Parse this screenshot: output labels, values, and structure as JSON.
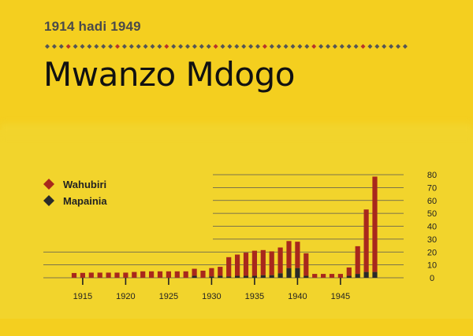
{
  "subtitle": "1914 hadi 1949",
  "title": "Mwanzo Mdogo",
  "colors": {
    "background": "#f2d42c",
    "header": "#f4cf1f",
    "wahubiri": "#a8281c",
    "mapainia": "#2a2a2a",
    "dot_red": "#b8342a",
    "dot_dark": "#555555"
  },
  "legend": [
    {
      "label": "Wahubiri",
      "icon": "diamond-icon-red"
    },
    {
      "label": "Mapainia",
      "icon": "diamond-icon-dark"
    }
  ],
  "chart_data": {
    "type": "bar",
    "stacked": true,
    "x": [
      1914,
      1915,
      1916,
      1917,
      1918,
      1919,
      1920,
      1921,
      1922,
      1923,
      1924,
      1925,
      1926,
      1927,
      1928,
      1929,
      1930,
      1931,
      1932,
      1933,
      1934,
      1935,
      1936,
      1937,
      1938,
      1939,
      1940,
      1941,
      1942,
      1943,
      1944,
      1945,
      1946,
      1947,
      1948,
      1949
    ],
    "series": [
      {
        "name": "Wahubiri",
        "color": "#a8281c",
        "values": [
          3.7,
          3.8,
          4.0,
          4.0,
          4.0,
          4.0,
          4.0,
          4.5,
          5.0,
          5.0,
          5.0,
          5.0,
          5.0,
          5.0,
          5.5,
          5.5,
          6.5,
          7.0,
          15.0,
          16.5,
          18.0,
          19.5,
          19.5,
          18.5,
          20.0,
          21.0,
          20.5,
          17.5,
          3.0,
          3.0,
          3.0,
          3.0,
          6.5,
          21.5,
          48.5,
          74.0
        ]
      },
      {
        "name": "Mapainia",
        "color": "#2a2a2a",
        "values": [
          0,
          0,
          0,
          0,
          0,
          0,
          0,
          0,
          0,
          0,
          0,
          0,
          0,
          0,
          1.5,
          0,
          1.0,
          1.5,
          1.0,
          1.5,
          1.5,
          1.5,
          2.0,
          2.0,
          3.5,
          7.5,
          7.5,
          1.5,
          0,
          0,
          0,
          0,
          1.5,
          3.0,
          4.5,
          4.5
        ]
      }
    ],
    "x_ticks": [
      "1915",
      "1920",
      "1925",
      "1930",
      "1935",
      "1940",
      "1945"
    ],
    "x_tick_values": [
      1915,
      1920,
      1925,
      1930,
      1935,
      1940,
      1945
    ],
    "y_ticks": [
      "0",
      "10",
      "20",
      "30",
      "40",
      "50",
      "60",
      "70",
      "80"
    ],
    "ylim": [
      0,
      80
    ],
    "grid": true,
    "legend_position": "top-left",
    "xlabel": "",
    "ylabel": ""
  }
}
